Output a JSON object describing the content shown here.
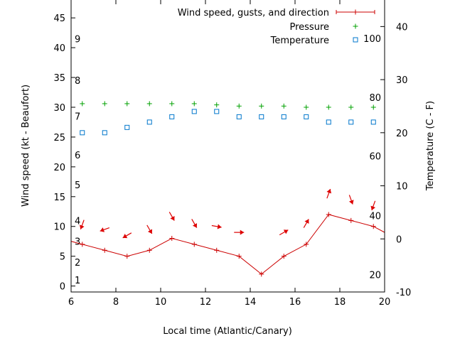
{
  "chart_data": {
    "type": "line",
    "xlabel": "Local time (Atlantic/Canary)",
    "ylabel_left": "Wind speed (kt - Beaufort)",
    "ylabel_right": "Temperature (C - F)",
    "xlim": [
      6,
      20
    ],
    "ylim_left": [
      -1,
      48
    ],
    "ylim_right": [
      -10,
      45
    ],
    "x_ticks": [
      6,
      8,
      10,
      12,
      14,
      16,
      18,
      20
    ],
    "y_ticks_left": [
      0,
      5,
      10,
      15,
      20,
      25,
      30,
      35,
      40,
      45
    ],
    "y_ticks_right": [
      -10,
      0,
      10,
      20,
      30,
      40
    ],
    "beaufort_labels": [
      {
        "label": "1",
        "kt": 1
      },
      {
        "label": "2",
        "kt": 4
      },
      {
        "label": "3",
        "kt": 7.5
      },
      {
        "label": "4",
        "kt": 11
      },
      {
        "label": "5",
        "kt": 17
      },
      {
        "label": "6",
        "kt": 22
      },
      {
        "label": "7",
        "kt": 28.5
      },
      {
        "label": "8",
        "kt": 34.5
      },
      {
        "label": "9",
        "kt": 41.5
      }
    ],
    "fahrenheit_labels": [
      {
        "label": "20",
        "c": -6.7
      },
      {
        "label": "40",
        "c": 4.4
      },
      {
        "label": "60",
        "c": 15.6
      },
      {
        "label": "80",
        "c": 26.7
      },
      {
        "label": "100",
        "c": 37.8
      }
    ],
    "legend_position": "top-right",
    "series": [
      {
        "name": "Wind speed, gusts, and direction",
        "color": "#cc0000",
        "x": [
          5.5,
          6.5,
          7.5,
          8.5,
          9.5,
          10.5,
          11.5,
          12.5,
          13.5,
          14.5,
          15.5,
          16.5,
          17.5,
          18.5,
          19.5,
          20.5
        ],
        "y": [
          8,
          7,
          6,
          5,
          6,
          8,
          7,
          6,
          5,
          2,
          5,
          7,
          12,
          11,
          10,
          8
        ]
      },
      {
        "name": "Pressure",
        "color": "#00a000",
        "x": [
          6.5,
          7.5,
          8.5,
          9.5,
          10.5,
          11.5,
          12.5,
          13.5,
          14.5,
          15.5,
          16.5,
          17.5,
          18.5,
          19.5
        ],
        "y": [
          30.6,
          30.6,
          30.6,
          30.6,
          30.6,
          30.6,
          30.4,
          30.2,
          30.2,
          30.2,
          30.0,
          30.0,
          30.0,
          30.0
        ]
      },
      {
        "name": "Temperature",
        "color": "#0077cc",
        "x": [
          6.5,
          7.5,
          8.5,
          9.5,
          10.5,
          11.5,
          12.5,
          13.5,
          14.5,
          15.5,
          16.5,
          17.5,
          18.5,
          19.5
        ],
        "y": [
          20,
          20,
          21,
          22,
          23,
          24,
          24,
          23,
          23,
          23,
          23,
          22,
          22,
          22
        ]
      }
    ],
    "wind_direction_arrows": [
      {
        "x": 6.5,
        "y": 10.3,
        "dir_deg": 200
      },
      {
        "x": 7.5,
        "y": 9.5,
        "dir_deg": 250
      },
      {
        "x": 8.5,
        "y": 8.5,
        "dir_deg": 240
      },
      {
        "x": 9.5,
        "y": 9.5,
        "dir_deg": 150
      },
      {
        "x": 10.5,
        "y": 11.7,
        "dir_deg": 150
      },
      {
        "x": 11.5,
        "y": 10.5,
        "dir_deg": 150
      },
      {
        "x": 12.5,
        "y": 10.0,
        "dir_deg": 100
      },
      {
        "x": 13.5,
        "y": 9.0,
        "dir_deg": 90
      },
      {
        "x": 15.5,
        "y": 9.0,
        "dir_deg": 60
      },
      {
        "x": 16.5,
        "y": 10.5,
        "dir_deg": 30
      },
      {
        "x": 17.5,
        "y": 15.5,
        "dir_deg": 20
      },
      {
        "x": 18.5,
        "y": 14.5,
        "dir_deg": 160
      },
      {
        "x": 19.5,
        "y": 13.5,
        "dir_deg": 200
      }
    ]
  }
}
